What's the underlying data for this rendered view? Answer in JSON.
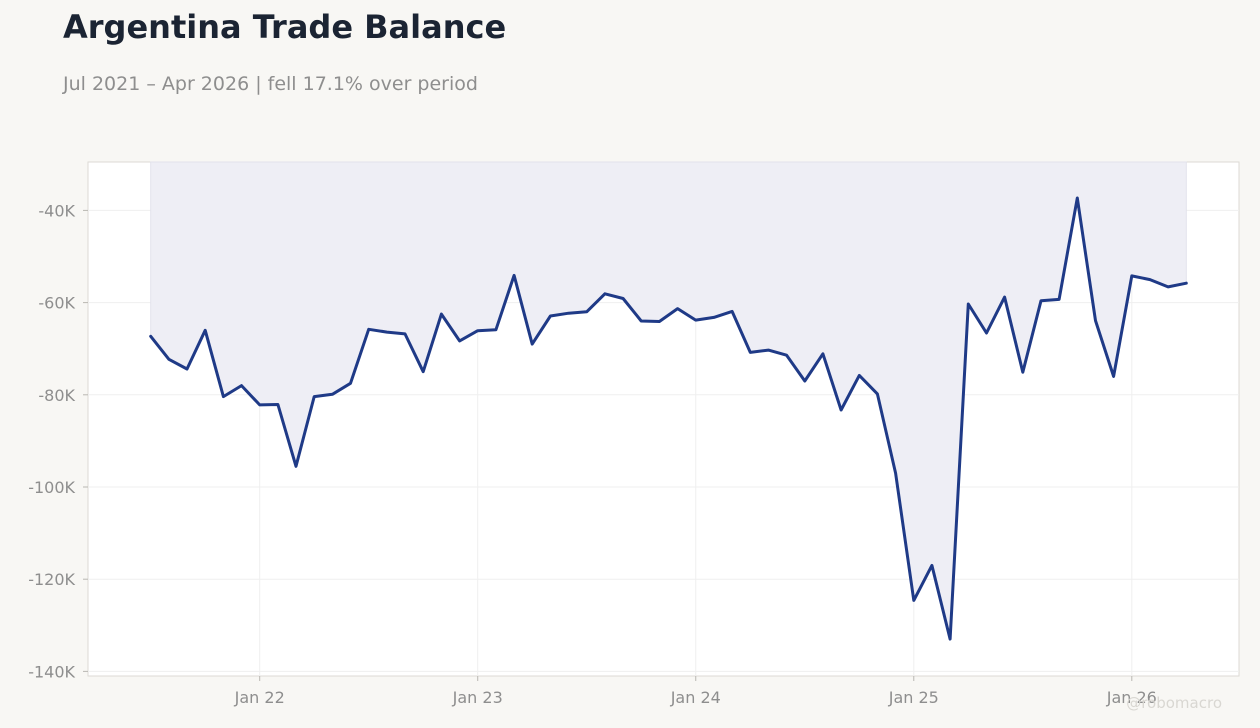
{
  "header": {
    "title": "Argentina Trade Balance",
    "subtitle": "Jul 2021 – Apr 2026 | fell 17.1% over period"
  },
  "watermark": "@robomacro",
  "colors": {
    "line": "#1f3a87",
    "fill": "#eeeef5",
    "plot_bg": "#ffffff",
    "page_bg": "#f8f7f4",
    "grid": "#efefef",
    "tick_text": "#8e8e8e"
  },
  "chart_data": {
    "type": "area",
    "title": "Argentina Trade Balance",
    "subtitle": "Jul 2021 – Apr 2026 | fell 17.1% over period",
    "xlabel": "",
    "ylabel": "",
    "x_start": "2021-07",
    "x_end": "2026-04",
    "frequency": "monthly",
    "ylim": [
      -141000,
      -29500
    ],
    "y_ticks": [
      -40000,
      -60000,
      -80000,
      -100000,
      -120000,
      -140000
    ],
    "y_tick_labels": [
      "-40K",
      "-60K",
      "-80K",
      "-100K",
      "-120K",
      "-140K"
    ],
    "x_ticks": [
      "2022-01",
      "2023-01",
      "2024-01",
      "2025-01",
      "2026-01"
    ],
    "x_tick_labels": [
      "Jan 22",
      "Jan 23",
      "Jan 24",
      "Jan 25",
      "Jan 26"
    ],
    "grid": true,
    "legend": "none",
    "fill": "area above line to top of plot",
    "series": [
      {
        "values": [
          -67300,
          -72300,
          -74400,
          -66000,
          -80400,
          -78000,
          -82200,
          -82100,
          -95500,
          -80400,
          -79900,
          -77500,
          -65800,
          -66400,
          -66800,
          -75000,
          -62500,
          -68300,
          -66100,
          -65900,
          -54100,
          -69000,
          -62900,
          -62300,
          -62000,
          -58100,
          -59100,
          -64000,
          -64100,
          -61300,
          -63800,
          -63200,
          -61900,
          -70800,
          -70300,
          -71400,
          -77000,
          -71100,
          -83300,
          -75800,
          -79800,
          -97000,
          -124600,
          -117000,
          -133000,
          -60300,
          -66600,
          -58800,
          -75100,
          -59600,
          -59300,
          -37300,
          -63900,
          -76000,
          -54200,
          -55000,
          -56600,
          -55800
        ]
      }
    ]
  }
}
